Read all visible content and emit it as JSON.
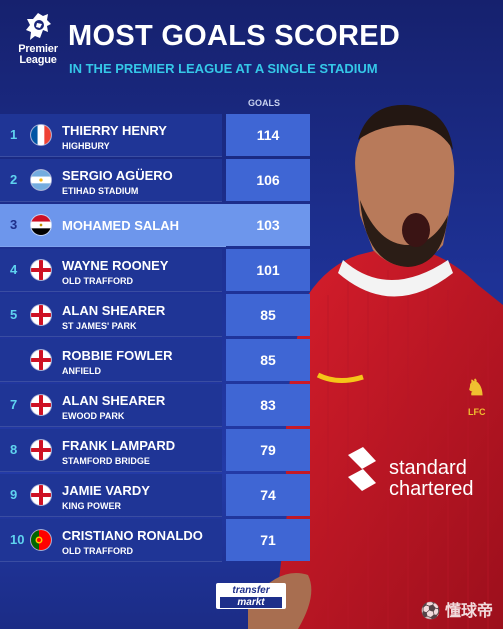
{
  "logo": {
    "line1": "Premier",
    "line2": "League"
  },
  "header": {
    "title": "MOST GOALS SCORED",
    "subtitle": "IN THE PREMIER LEAGUE AT A SINGLE STADIUM",
    "goals_label": "GOALS"
  },
  "rows": [
    {
      "rank": "1",
      "name": "THIERRY HENRY",
      "venue": "HIGHBURY",
      "goals": "114",
      "flag": "france"
    },
    {
      "rank": "2",
      "name": "SERGIO AGÜERO",
      "venue": "ETIHAD STADIUM",
      "goals": "106",
      "flag": "argentina"
    },
    {
      "rank": "3",
      "name": "MOHAMED SALAH",
      "venue": "",
      "goals": "103",
      "flag": "egypt"
    },
    {
      "rank": "4",
      "name": "WAYNE ROONEY",
      "venue": "OLD TRAFFORD",
      "goals": "101",
      "flag": "england"
    },
    {
      "rank": "5",
      "name": "ALAN SHEARER",
      "venue": "ST JAMES' PARK",
      "goals": "85",
      "flag": "england"
    },
    {
      "rank": "",
      "name": "ROBBIE FOWLER",
      "venue": "ANFIELD",
      "goals": "85",
      "flag": "england"
    },
    {
      "rank": "7",
      "name": "ALAN SHEARER",
      "venue": "EWOOD PARK",
      "goals": "83",
      "flag": "england"
    },
    {
      "rank": "8",
      "name": "FRANK LAMPARD",
      "venue": "STAMFORD BRIDGE",
      "goals": "79",
      "flag": "england"
    },
    {
      "rank": "9",
      "name": "JAMIE VARDY",
      "venue": "KING POWER",
      "goals": "74",
      "flag": "england"
    },
    {
      "rank": "10",
      "name": "CRISTIANO RONALDO",
      "venue": "OLD TRAFFORD",
      "goals": "71",
      "flag": "portugal"
    }
  ],
  "player_shirt": {
    "sponsor_line1": "standard",
    "sponsor_line2": "chartered",
    "crest": "LFC"
  },
  "branding": {
    "line1": "transfer",
    "line2": "markt"
  },
  "watermark": "懂球帝",
  "colors": {
    "background": "#1e3296",
    "value_cell": "#3f66d4",
    "highlight": "#6d96ec",
    "accent": "#35c8e8"
  }
}
